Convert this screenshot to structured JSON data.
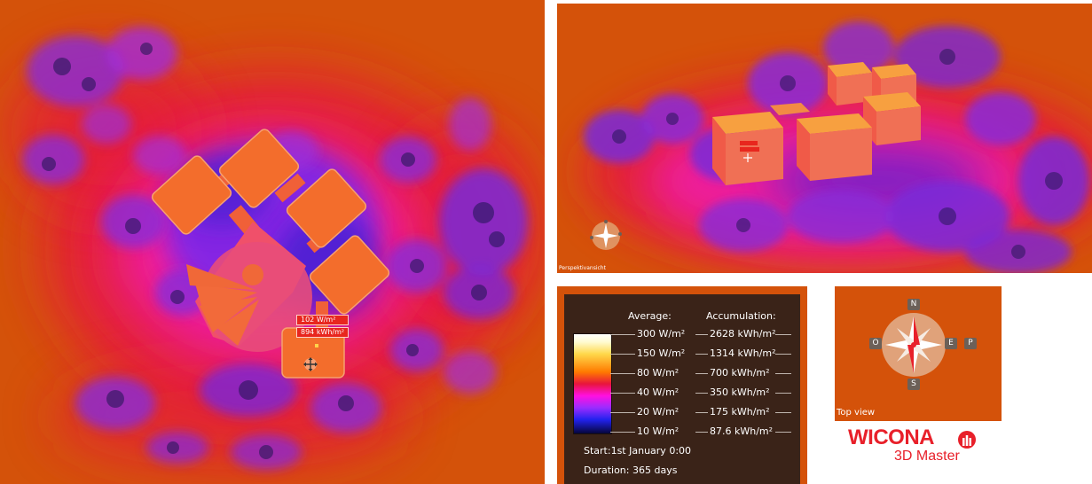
{
  "main_view": {
    "readout": {
      "average": "102 W/m²",
      "accumulation": "894 kWh/m²"
    }
  },
  "perspective_view": {
    "caption": "Perspektivansicht",
    "readout": {
      "average": "79 W/m²",
      "accumulation": "693 kWh/m²"
    }
  },
  "legend": {
    "header_average": "Average:",
    "header_accumulation": "Accumulation:",
    "rows": [
      {
        "average": "300 W/m²",
        "accumulation": "2628 kWh/m²"
      },
      {
        "average": "150 W/m²",
        "accumulation": "1314 kWh/m²"
      },
      {
        "average": "80 W/m²",
        "accumulation": "700 kWh/m²"
      },
      {
        "average": "40 W/m²",
        "accumulation": "350 kWh/m²"
      },
      {
        "average": "20 W/m²",
        "accumulation": "175 kWh/m²"
      },
      {
        "average": "10 W/m²",
        "accumulation": "87.6 kWh/m²"
      }
    ],
    "start": "Start:1st January 0:00",
    "duration": "Duration: 365 days"
  },
  "compass": {
    "north": "N",
    "south": "S",
    "west": "O",
    "east": "E",
    "extra": "P",
    "caption": "Top view"
  },
  "logo": {
    "wordmark": "WICONA",
    "subtitle": "3D Master",
    "color": "#e8202a"
  },
  "colors": {
    "background": "#d4520a",
    "legend_bg": "#3a2318"
  }
}
